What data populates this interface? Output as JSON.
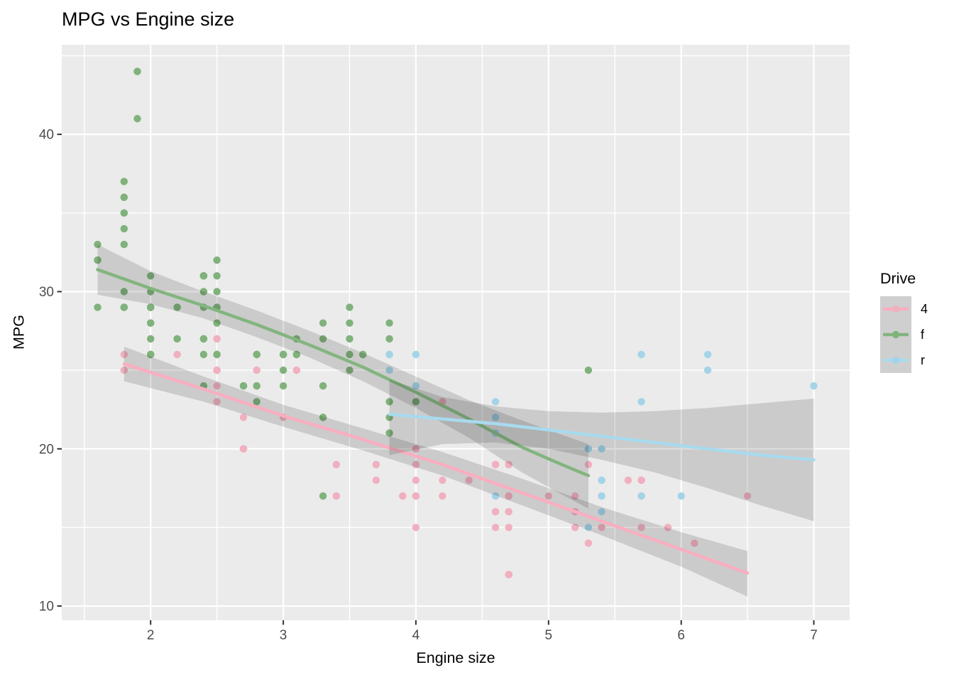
{
  "title": "MPG vs Engine size",
  "legend": {
    "title": "Drive",
    "key_bg": "#CFCFCF",
    "entries": [
      {
        "label": "4"
      },
      {
        "label": "f"
      },
      {
        "label": "r"
      }
    ]
  },
  "chart_data": {
    "type": "scatter",
    "title": "MPG vs Engine size",
    "xlabel": "Engine size",
    "ylabel": "MPG",
    "xlim": [
      1.33,
      7.27
    ],
    "ylim": [
      9.1,
      45.7
    ],
    "x_ticks": [
      2,
      3,
      4,
      5,
      6,
      7
    ],
    "x_tick_labels": [
      "2",
      "3",
      "4",
      "5",
      "6",
      "7"
    ],
    "x_minor": [
      1.5,
      2.5,
      3.5,
      4.5,
      5.5,
      6.5
    ],
    "y_ticks": [
      10,
      20,
      30,
      40
    ],
    "y_tick_labels": [
      "10",
      "20",
      "30",
      "40"
    ],
    "y_minor": [
      15,
      25,
      35,
      45
    ],
    "grid": "on",
    "legend_position": "right",
    "panel_bg": "#EBEBEB",
    "grid_color": "#FFFFFF",
    "tick_label_color": "#4D4D4D",
    "tick_mark_color": "#333333",
    "ribbon_color": "rgba(0,0,0,0.135)",
    "series": [
      {
        "name": "4",
        "point_color": "#F0B0BF",
        "line_color": "#F9AEC0",
        "points": [
          [
            1.8,
            26
          ],
          [
            1.8,
            25
          ],
          [
            2.0,
            28
          ],
          [
            2.0,
            27
          ],
          [
            2.8,
            25
          ],
          [
            2.8,
            25
          ],
          [
            3.1,
            25
          ],
          [
            3.1,
            25
          ],
          [
            2.8,
            24
          ],
          [
            3.1,
            25
          ],
          [
            4.2,
            23
          ],
          [
            5.3,
            19
          ],
          [
            5.3,
            14
          ],
          [
            5.7,
            15
          ],
          [
            6.5,
            17
          ],
          [
            3.7,
            19
          ],
          [
            3.7,
            18
          ],
          [
            3.9,
            17
          ],
          [
            3.9,
            17
          ],
          [
            4.7,
            19
          ],
          [
            4.7,
            19
          ],
          [
            4.7,
            12
          ],
          [
            5.2,
            17
          ],
          [
            5.2,
            15
          ],
          [
            3.9,
            17
          ],
          [
            4.7,
            17
          ],
          [
            4.7,
            12
          ],
          [
            4.7,
            17
          ],
          [
            5.2,
            16
          ],
          [
            5.7,
            18
          ],
          [
            5.9,
            15
          ],
          [
            4.7,
            16
          ],
          [
            4.7,
            12
          ],
          [
            4.7,
            17
          ],
          [
            4.7,
            17
          ],
          [
            4.7,
            16
          ],
          [
            4.7,
            12
          ],
          [
            5.2,
            15
          ],
          [
            5.2,
            16
          ],
          [
            5.7,
            17
          ],
          [
            5.9,
            15
          ],
          [
            4.0,
            17
          ],
          [
            4.0,
            17
          ],
          [
            4.0,
            19
          ],
          [
            4.0,
            19
          ],
          [
            4.6,
            19
          ],
          [
            4.6,
            19
          ],
          [
            4.2,
            17
          ],
          [
            4.2,
            17
          ],
          [
            4.6,
            16
          ],
          [
            4.6,
            16
          ],
          [
            4.6,
            17
          ],
          [
            5.4,
            15
          ],
          [
            5.4,
            17
          ],
          [
            3.0,
            22
          ],
          [
            3.7,
            19
          ],
          [
            4.0,
            20
          ],
          [
            4.7,
            17
          ],
          [
            4.7,
            12
          ],
          [
            4.7,
            19
          ],
          [
            5.7,
            18
          ],
          [
            6.1,
            14
          ],
          [
            4.0,
            15
          ],
          [
            4.2,
            18
          ],
          [
            4.4,
            18
          ],
          [
            4.6,
            15
          ],
          [
            4.0,
            17
          ],
          [
            4.0,
            19
          ],
          [
            4.6,
            19
          ],
          [
            5.0,
            17
          ],
          [
            3.3,
            17
          ],
          [
            3.3,
            17
          ],
          [
            4.0,
            20
          ],
          [
            5.6,
            18
          ],
          [
            2.5,
            25
          ],
          [
            2.5,
            24
          ],
          [
            2.5,
            27
          ],
          [
            2.5,
            25
          ],
          [
            2.5,
            26
          ],
          [
            2.5,
            23
          ],
          [
            2.2,
            26
          ],
          [
            2.2,
            26
          ],
          [
            2.5,
            26
          ],
          [
            2.5,
            26
          ],
          [
            2.5,
            25
          ],
          [
            2.5,
            27
          ],
          [
            2.5,
            25
          ],
          [
            2.5,
            27
          ],
          [
            2.7,
            20
          ],
          [
            2.7,
            20
          ],
          [
            3.4,
            19
          ],
          [
            3.4,
            17
          ],
          [
            4.0,
            20
          ],
          [
            4.7,
            17
          ],
          [
            2.7,
            20
          ],
          [
            2.7,
            20
          ],
          [
            2.7,
            22
          ],
          [
            3.4,
            19
          ],
          [
            3.4,
            17
          ],
          [
            4.0,
            18
          ],
          [
            4.0,
            17
          ],
          [
            4.7,
            15
          ],
          [
            5.7,
            18
          ]
        ],
        "smooth": {
          "x": [
            1.8,
            2.4,
            3.0,
            3.6,
            4.2,
            4.8,
            5.4,
            6.0,
            6.5
          ],
          "y": [
            25.4,
            23.8,
            22.1,
            20.6,
            19.0,
            17.2,
            15.4,
            13.6,
            12.1
          ],
          "ymax": [
            26.5,
            24.6,
            22.8,
            21.3,
            19.8,
            18.1,
            16.3,
            14.7,
            13.5
          ],
          "ymin": [
            24.3,
            23.0,
            21.4,
            19.9,
            18.3,
            16.4,
            14.5,
            12.5,
            10.6
          ]
        }
      },
      {
        "name": "f",
        "point_color": "#80B27C",
        "line_color": "#83B57F",
        "points": [
          [
            1.8,
            29
          ],
          [
            1.8,
            29
          ],
          [
            2.0,
            31
          ],
          [
            2.0,
            30
          ],
          [
            2.8,
            26
          ],
          [
            2.8,
            26
          ],
          [
            3.1,
            27
          ],
          [
            2.4,
            27
          ],
          [
            2.4,
            30
          ],
          [
            3.1,
            26
          ],
          [
            3.5,
            29
          ],
          [
            3.6,
            26
          ],
          [
            2.4,
            24
          ],
          [
            3.0,
            24
          ],
          [
            3.3,
            22
          ],
          [
            3.3,
            22
          ],
          [
            3.3,
            24
          ],
          [
            3.3,
            24
          ],
          [
            3.3,
            17
          ],
          [
            3.8,
            22
          ],
          [
            3.8,
            21
          ],
          [
            3.8,
            23
          ],
          [
            4.0,
            23
          ],
          [
            1.6,
            33
          ],
          [
            1.6,
            32
          ],
          [
            1.6,
            32
          ],
          [
            1.6,
            29
          ],
          [
            1.6,
            32
          ],
          [
            1.8,
            34
          ],
          [
            1.8,
            36
          ],
          [
            1.8,
            36
          ],
          [
            2.0,
            29
          ],
          [
            2.4,
            26
          ],
          [
            2.4,
            27
          ],
          [
            2.4,
            30
          ],
          [
            2.4,
            31
          ],
          [
            2.5,
            26
          ],
          [
            2.5,
            26
          ],
          [
            3.3,
            28
          ],
          [
            2.0,
            26
          ],
          [
            2.0,
            29
          ],
          [
            2.0,
            28
          ],
          [
            2.0,
            27
          ],
          [
            2.7,
            24
          ],
          [
            2.7,
            24
          ],
          [
            2.7,
            24
          ],
          [
            2.4,
            29
          ],
          [
            2.4,
            27
          ],
          [
            2.5,
            31
          ],
          [
            2.5,
            32
          ],
          [
            3.5,
            27
          ],
          [
            3.5,
            26
          ],
          [
            3.0,
            26
          ],
          [
            3.0,
            25
          ],
          [
            3.5,
            25
          ],
          [
            3.1,
            26
          ],
          [
            3.8,
            26
          ],
          [
            3.8,
            27
          ],
          [
            3.8,
            28
          ],
          [
            5.3,
            25
          ],
          [
            2.2,
            29
          ],
          [
            2.2,
            27
          ],
          [
            2.4,
            31
          ],
          [
            2.4,
            31
          ],
          [
            3.0,
            26
          ],
          [
            3.0,
            26
          ],
          [
            3.5,
            28
          ],
          [
            2.2,
            27
          ],
          [
            2.2,
            29
          ],
          [
            2.4,
            31
          ],
          [
            2.4,
            31
          ],
          [
            3.0,
            26
          ],
          [
            3.0,
            26
          ],
          [
            3.3,
            27
          ],
          [
            1.8,
            30
          ],
          [
            1.8,
            33
          ],
          [
            1.8,
            35
          ],
          [
            1.8,
            37
          ],
          [
            1.8,
            35
          ],
          [
            2.0,
            29
          ],
          [
            2.0,
            26
          ],
          [
            2.0,
            29
          ],
          [
            2.0,
            29
          ],
          [
            2.8,
            24
          ],
          [
            1.9,
            44
          ],
          [
            2.0,
            29
          ],
          [
            2.0,
            26
          ],
          [
            2.0,
            29
          ],
          [
            2.0,
            29
          ],
          [
            2.5,
            29
          ],
          [
            2.5,
            30
          ],
          [
            2.8,
            24
          ],
          [
            2.8,
            23
          ],
          [
            1.9,
            44
          ],
          [
            1.9,
            41
          ],
          [
            2.0,
            29
          ],
          [
            2.0,
            26
          ],
          [
            2.5,
            28
          ],
          [
            2.5,
            29
          ],
          [
            1.8,
            29
          ],
          [
            1.8,
            29
          ],
          [
            2.0,
            28
          ],
          [
            2.0,
            29
          ],
          [
            2.8,
            26
          ],
          [
            2.8,
            26
          ],
          [
            3.6,
            26
          ]
        ],
        "smooth": {
          "x": [
            1.6,
            2.0,
            2.4,
            2.8,
            3.2,
            3.6,
            4.0,
            4.4,
            4.8,
            5.1,
            5.3
          ],
          "y": [
            31.4,
            30.2,
            29.1,
            27.9,
            26.6,
            25.2,
            23.6,
            21.9,
            20.1,
            19.0,
            18.3
          ],
          "ymax": [
            33.0,
            31.3,
            30.0,
            28.8,
            27.5,
            26.1,
            24.6,
            23.1,
            21.8,
            20.9,
            20.3
          ],
          "ymin": [
            29.8,
            29.2,
            28.3,
            27.1,
            25.8,
            24.3,
            22.6,
            20.7,
            18.5,
            17.1,
            16.2
          ]
        }
      },
      {
        "name": "r",
        "point_color": "#A3D4E8",
        "line_color": "#A8DAEE",
        "points": [
          [
            5.3,
            20
          ],
          [
            5.3,
            15
          ],
          [
            5.3,
            20
          ],
          [
            5.7,
            17
          ],
          [
            6.0,
            17
          ],
          [
            5.7,
            26
          ],
          [
            5.7,
            23
          ],
          [
            6.2,
            26
          ],
          [
            6.2,
            25
          ],
          [
            7.0,
            24
          ],
          [
            4.6,
            17
          ],
          [
            5.4,
            17
          ],
          [
            5.4,
            18
          ],
          [
            3.8,
            26
          ],
          [
            3.8,
            25
          ],
          [
            4.0,
            26
          ],
          [
            4.0,
            24
          ],
          [
            4.6,
            21
          ],
          [
            4.6,
            22
          ],
          [
            4.6,
            23
          ],
          [
            4.6,
            22
          ],
          [
            5.4,
            20
          ],
          [
            5.4,
            17
          ],
          [
            5.4,
            16
          ],
          [
            5.4,
            18
          ]
        ],
        "smooth": {
          "x": [
            3.8,
            4.2,
            4.6,
            5.0,
            5.4,
            5.8,
            6.2,
            6.6,
            7.0
          ],
          "y": [
            22.2,
            21.9,
            21.6,
            21.2,
            20.8,
            20.4,
            20.0,
            19.6,
            19.3
          ],
          "ymax": [
            24.4,
            23.3,
            22.7,
            22.4,
            22.3,
            22.4,
            22.6,
            22.9,
            23.2
          ],
          "ymin": [
            19.6,
            20.3,
            20.4,
            20.0,
            19.3,
            18.5,
            17.5,
            16.4,
            15.4
          ]
        }
      }
    ]
  }
}
